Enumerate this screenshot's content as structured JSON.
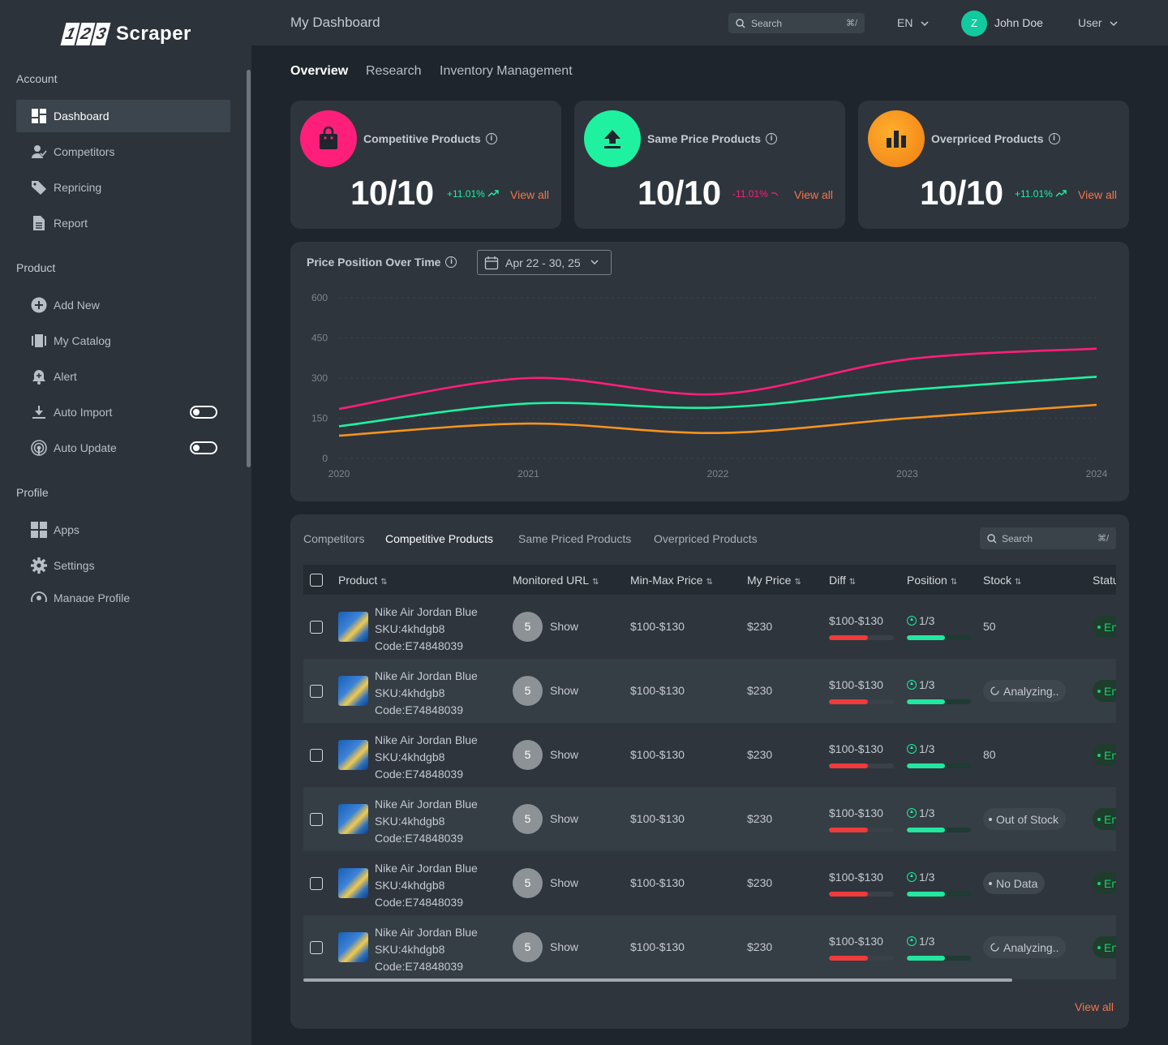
{
  "app": {
    "logo_digits": [
      "1",
      "2",
      "3"
    ],
    "logo_text": "Scraper"
  },
  "sidebar": {
    "sections": [
      {
        "title": "Account"
      },
      {
        "title": "Product"
      },
      {
        "title": "Profile"
      }
    ],
    "items": [
      {
        "label": "Dashboard",
        "icon": "dashboard-icon",
        "active": true
      },
      {
        "label": "Competitors",
        "icon": "user-check-icon"
      },
      {
        "label": "Repricing",
        "icon": "price-tag-icon"
      },
      {
        "label": "Report",
        "icon": "document-icon"
      },
      {
        "label": "Add New",
        "icon": "plus-circle-icon"
      },
      {
        "label": "My Catalog",
        "icon": "catalog-icon"
      },
      {
        "label": "Alert",
        "icon": "bell-plus-icon"
      },
      {
        "label": "Auto Import",
        "icon": "download-icon",
        "toggle": false
      },
      {
        "label": "Auto Update",
        "icon": "broadcast-icon",
        "toggle": false
      },
      {
        "label": "Apps",
        "icon": "apps-grid-icon"
      },
      {
        "label": "Settings",
        "icon": "gear-icon"
      },
      {
        "label": "Manage Profile",
        "icon": "user-circle-icon"
      }
    ]
  },
  "topbar": {
    "title": "My Dashboard",
    "search_placeholder": "Search",
    "search_shortcut": "⌘/",
    "language": "EN",
    "avatar_initial": "Z",
    "user_name": "John Doe",
    "user_role": "User"
  },
  "main_tabs": [
    {
      "label": "Overview",
      "active": true
    },
    {
      "label": "Research"
    },
    {
      "label": "Inventory Management"
    }
  ],
  "stats": [
    {
      "title": "Competitive Products",
      "value": "10/10",
      "delta": "+11.01%",
      "trend": "up",
      "view_all": "View all",
      "color": "#ff1f7a"
    },
    {
      "title": "Same Price Products",
      "value": "10/10",
      "delta": "-11.01%",
      "trend": "down",
      "view_all": "View all",
      "color": "#1ef2a0"
    },
    {
      "title": "Overpriced Products",
      "value": "10/10",
      "delta": "+11.01%",
      "trend": "up",
      "view_all": "View all",
      "color": "#f7931e"
    }
  ],
  "chart": {
    "title": "Price Position Over Time",
    "date_range": "Apr 22 - 30, 25"
  },
  "chart_data": {
    "type": "line",
    "title": "Price Position Over Time",
    "x": [
      2020,
      2021,
      2022,
      2023,
      2024
    ],
    "ylim": [
      0,
      600
    ],
    "yticks": [
      0,
      150,
      300,
      450,
      600
    ],
    "grid": true,
    "series": [
      {
        "color": "#ff1f7a",
        "values": [
          185,
          300,
          240,
          370,
          410
        ]
      },
      {
        "color": "#1ef2a0",
        "values": [
          120,
          205,
          190,
          255,
          305
        ]
      },
      {
        "color": "#f7931e",
        "values": [
          85,
          130,
          95,
          150,
          200
        ]
      }
    ]
  },
  "table": {
    "tabs": [
      {
        "label": "Competitors"
      },
      {
        "label": "Competitive Products",
        "active": true
      },
      {
        "label": "Same Priced Products"
      },
      {
        "label": "Overpriced Products"
      }
    ],
    "search_placeholder": "Search",
    "search_shortcut": "⌘/",
    "columns": [
      "Product",
      "Monitored URL",
      "Min-Max Price",
      "My Price",
      "Diff",
      "Position",
      "Stock",
      "Status"
    ],
    "rows": [
      {
        "name": "Nike Air Jordan Blue",
        "sku": "SKU:4khdgb8",
        "code": "Code:E74848039",
        "url_count": "5",
        "url_label": "Show",
        "min_max": "$100-$130",
        "my_price": "$230",
        "diff": "$100-$130",
        "diff_level": 0.6,
        "position": "1/3",
        "position_level": 0.6,
        "stock": "50",
        "stock_type": "plain",
        "status": "Enabled"
      },
      {
        "name": "Nike Air Jordan Blue",
        "sku": "SKU:4khdgb8",
        "code": "Code:E74848039",
        "url_count": "5",
        "url_label": "Show",
        "min_max": "$100-$130",
        "my_price": "$230",
        "diff": "$100-$130",
        "diff_level": 0.6,
        "position": "1/3",
        "position_level": 0.6,
        "stock": "Analyzing..",
        "stock_type": "loading",
        "status": "Enabled"
      },
      {
        "name": "Nike Air Jordan Blue",
        "sku": "SKU:4khdgb8",
        "code": "Code:E74848039",
        "url_count": "5",
        "url_label": "Show",
        "min_max": "$100-$130",
        "my_price": "$230",
        "diff": "$100-$130",
        "diff_level": 0.6,
        "position": "1/3",
        "position_level": 0.6,
        "stock": "80",
        "stock_type": "plain",
        "status": "Enabled"
      },
      {
        "name": "Nike Air Jordan Blue",
        "sku": "SKU:4khdgb8",
        "code": "Code:E74848039",
        "url_count": "5",
        "url_label": "Show",
        "min_max": "$100-$130",
        "my_price": "$230",
        "diff": "$100-$130",
        "diff_level": 0.6,
        "position": "1/3",
        "position_level": 0.6,
        "stock": "Out of Stock",
        "stock_type": "dot",
        "status": "Enabled"
      },
      {
        "name": "Nike Air Jordan Blue",
        "sku": "SKU:4khdgb8",
        "code": "Code:E74848039",
        "url_count": "5",
        "url_label": "Show",
        "min_max": "$100-$130",
        "my_price": "$230",
        "diff": "$100-$130",
        "diff_level": 0.6,
        "position": "1/3",
        "position_level": 0.6,
        "stock": "No Data",
        "stock_type": "dot",
        "status": "Enabled"
      },
      {
        "name": "Nike Air Jordan Blue",
        "sku": "SKU:4khdgb8",
        "code": "Code:E74848039",
        "url_count": "5",
        "url_label": "Show",
        "min_max": "$100-$130",
        "my_price": "$230",
        "diff": "$100-$130",
        "diff_level": 0.6,
        "position": "1/3",
        "position_level": 0.6,
        "stock": "Analyzing..",
        "stock_type": "loading",
        "status": "Enabled"
      }
    ],
    "view_all": "View all"
  }
}
